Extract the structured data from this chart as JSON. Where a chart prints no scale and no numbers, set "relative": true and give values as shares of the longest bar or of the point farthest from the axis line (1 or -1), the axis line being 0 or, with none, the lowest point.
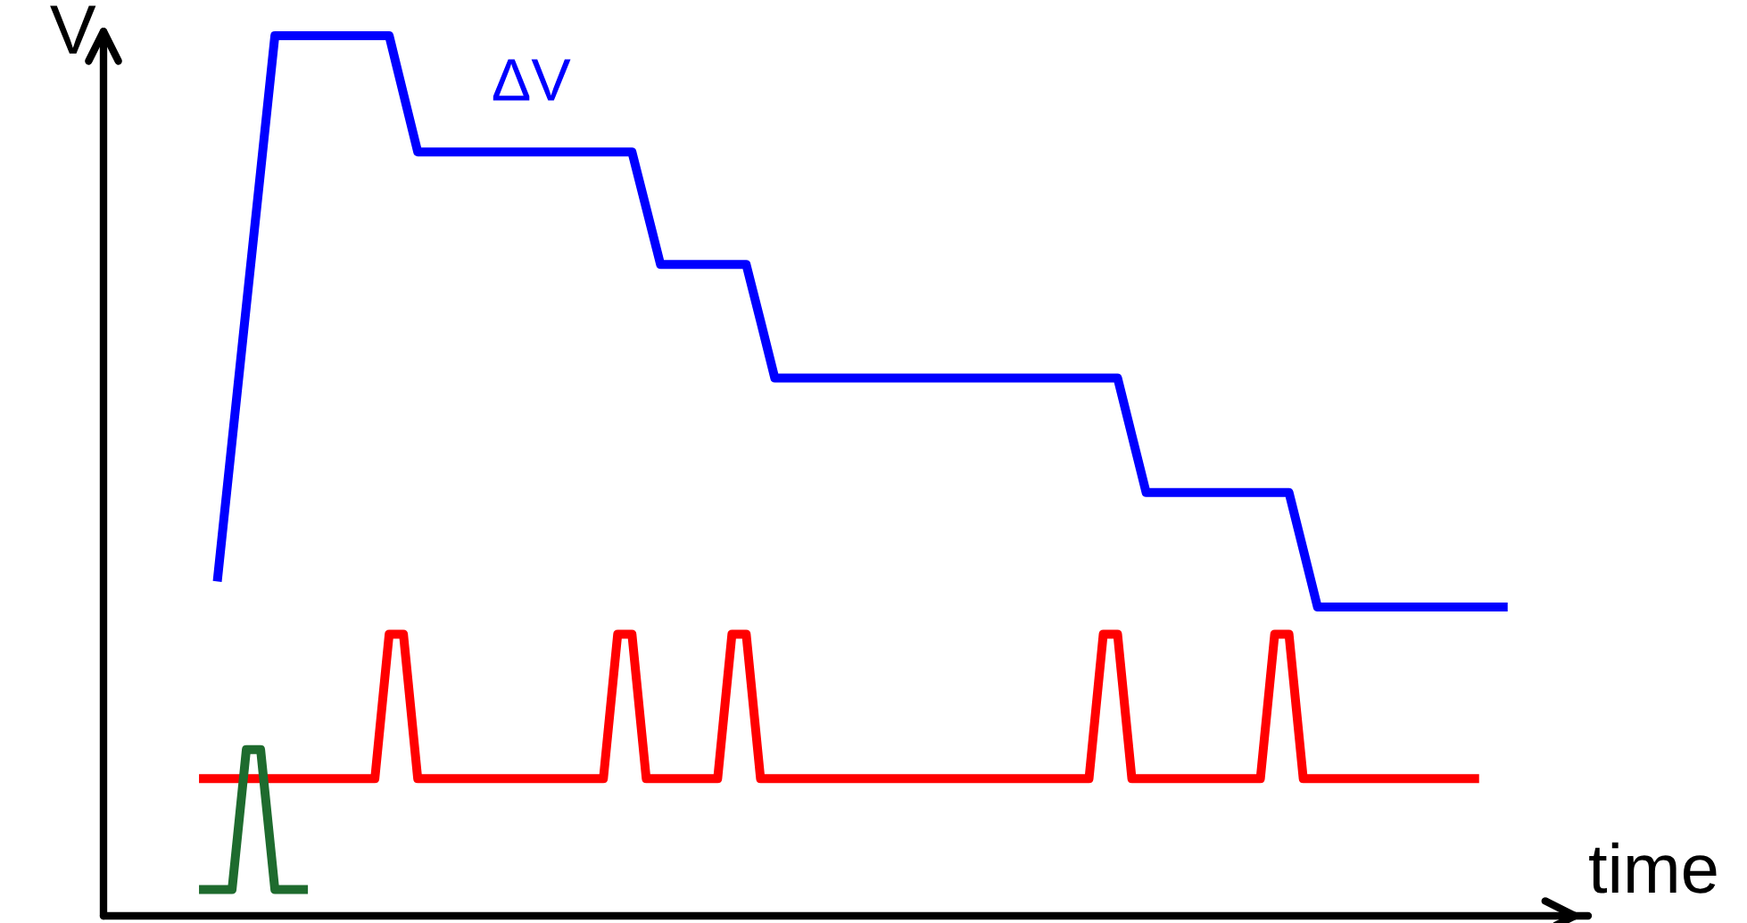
{
  "chart_data": {
    "type": "line",
    "relative": true,
    "xlabel": "time",
    "ylabel": "V",
    "legend": false,
    "marker": "none",
    "line_style": "solid",
    "categories": [
      null,
      null,
      null,
      null,
      null,
      null,
      null,
      null,
      null,
      null,
      null,
      null,
      null,
      null,
      null,
      null,
      null,
      null,
      null,
      null,
      null,
      null,
      null,
      null,
      null,
      null,
      null,
      null,
      null,
      null,
      null,
      null,
      null,
      null,
      null,
      null,
      null,
      null,
      null,
      null,
      null,
      null,
      null,
      null,
      null,
      null,
      null,
      null,
      null,
      null,
      null,
      null,
      null,
      null,
      null,
      null,
      null,
      null,
      null,
      null,
      null,
      null,
      null,
      null,
      null,
      null,
      null,
      null,
      null,
      null,
      null,
      null,
      null,
      null,
      null,
      null,
      null,
      null,
      null,
      null,
      null,
      null,
      null,
      null,
      null,
      null,
      null,
      null,
      null,
      null,
      null,
      null,
      null,
      null,
      null,
      null,
      null,
      null,
      null,
      null
    ],
    "series": [
      {
        "name": "ΔV",
        "color": "#0000ff",
        "values": [
          null,
          null,
          null,
          null,
          null,
          null,
          null,
          null,
          0.385,
          0.539,
          0.693,
          0.846,
          1,
          1,
          1,
          1,
          1,
          1,
          1,
          1,
          1,
          0.934,
          0.868,
          0.868,
          0.868,
          0.868,
          0.868,
          0.868,
          0.868,
          0.868,
          0.868,
          0.868,
          0.868,
          0.868,
          0.868,
          0.868,
          0.868,
          0.868,
          0.804,
          0.74,
          0.74,
          0.74,
          0.74,
          0.74,
          0.74,
          0.74,
          0.676,
          0.611,
          0.611,
          0.611,
          0.611,
          0.611,
          0.611,
          0.611,
          0.611,
          0.611,
          0.611,
          0.611,
          0.611,
          0.611,
          0.611,
          0.611,
          0.611,
          0.611,
          0.611,
          0.611,
          0.611,
          0.611,
          0.611,
          0.611,
          0.611,
          0.611,
          0.546,
          0.481,
          0.481,
          0.481,
          0.481,
          0.481,
          0.481,
          0.481,
          0.481,
          0.481,
          0.481,
          0.481,
          0.416,
          0.351,
          0.351,
          0.351,
          0.351,
          0.351,
          0.351,
          0.351,
          0.351,
          0.351,
          0.351,
          0.351,
          0.351,
          0.351,
          0.351,
          null
        ]
      },
      {
        "color": "#ff0000",
        "values": [
          null,
          null,
          null,
          null,
          null,
          null,
          null,
          0.156,
          0.156,
          0.156,
          0.156,
          0.156,
          0.156,
          0.156,
          0.156,
          0.156,
          0.156,
          0.156,
          0.156,
          0.156,
          0.32,
          0.32,
          0.156,
          0.156,
          0.156,
          0.156,
          0.156,
          0.156,
          0.156,
          0.156,
          0.156,
          0.156,
          0.156,
          0.156,
          0.156,
          0.156,
          0.32,
          0.32,
          0.156,
          0.156,
          0.156,
          0.156,
          0.156,
          0.156,
          0.32,
          0.32,
          0.156,
          0.156,
          0.156,
          0.156,
          0.156,
          0.156,
          0.156,
          0.156,
          0.156,
          0.156,
          0.156,
          0.156,
          0.156,
          0.156,
          0.156,
          0.156,
          0.156,
          0.156,
          0.156,
          0.156,
          0.156,
          0.156,
          0.156,
          0.156,
          0.32,
          0.32,
          0.156,
          0.156,
          0.156,
          0.156,
          0.156,
          0.156,
          0.156,
          0.156,
          0.156,
          0.156,
          0.32,
          0.32,
          0.156,
          0.156,
          0.156,
          0.156,
          0.156,
          0.156,
          0.156,
          0.156,
          0.156,
          0.156,
          0.156,
          0.156,
          0.156,
          null,
          null,
          null
        ]
      },
      {
        "color": "#1e6b2e",
        "values": [
          null,
          null,
          null,
          null,
          null,
          null,
          null,
          0.03,
          0.03,
          0.03,
          0.189,
          0.189,
          0.03,
          0.03,
          0.03,
          null,
          null,
          null,
          null,
          null,
          null,
          null,
          null,
          null,
          null,
          null,
          null,
          null,
          null,
          null,
          null,
          null,
          null,
          null,
          null,
          null,
          null,
          null,
          null,
          null,
          null,
          null,
          null,
          null,
          null,
          null,
          null,
          null,
          null,
          null,
          null,
          null,
          null,
          null,
          null,
          null,
          null,
          null,
          null,
          null,
          null,
          null,
          null,
          null,
          null,
          null,
          null,
          null,
          null,
          null,
          null,
          null,
          null,
          null,
          null,
          null,
          null,
          null,
          null,
          null,
          null,
          null,
          null,
          null,
          null,
          null,
          null,
          null,
          null,
          null,
          null,
          null,
          null,
          null,
          null,
          null,
          null,
          null,
          null,
          null
        ]
      }
    ]
  }
}
